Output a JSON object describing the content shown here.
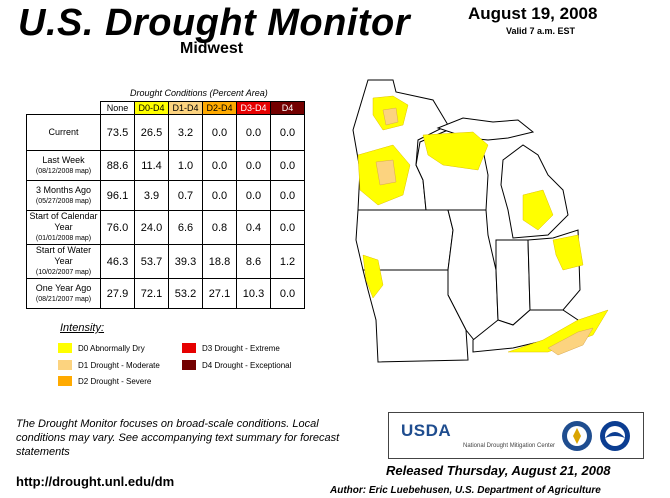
{
  "header": {
    "title": "U.S. Drought Monitor",
    "region": "Midwest",
    "date": "August 19, 2008",
    "valid": "Valid 7 a.m. EST"
  },
  "table": {
    "caption": "Drought Conditions (Percent Area)",
    "columns": [
      "None",
      "D0-D4",
      "D1-D4",
      "D2-D4",
      "D3-D4",
      "D4"
    ],
    "rows": [
      {
        "label": "Current",
        "sub": "",
        "values": [
          "73.5",
          "26.5",
          "3.2",
          "0.0",
          "0.0",
          "0.0"
        ]
      },
      {
        "label": "Last Week",
        "sub": "(08/12/2008 map)",
        "values": [
          "88.6",
          "11.4",
          "1.0",
          "0.0",
          "0.0",
          "0.0"
        ]
      },
      {
        "label": "3 Months Ago",
        "sub": "(05/27/2008 map)",
        "values": [
          "96.1",
          "3.9",
          "0.7",
          "0.0",
          "0.0",
          "0.0"
        ]
      },
      {
        "label": "Start of Calendar Year",
        "sub": "(01/01/2008 map)",
        "values": [
          "76.0",
          "24.0",
          "6.6",
          "0.8",
          "0.4",
          "0.0"
        ]
      },
      {
        "label": "Start of Water Year",
        "sub": "(10/02/2007 map)",
        "values": [
          "46.3",
          "53.7",
          "39.3",
          "18.8",
          "8.6",
          "1.2"
        ]
      },
      {
        "label": "One Year Ago",
        "sub": "(08/21/2007 map)",
        "values": [
          "27.9",
          "72.1",
          "53.2",
          "27.1",
          "10.3",
          "0.0"
        ]
      }
    ]
  },
  "legend": {
    "title": "Intensity:",
    "items": [
      {
        "label": "D0 Abnormally Dry",
        "color": "#ffff00"
      },
      {
        "label": "D1 Drought - Moderate",
        "color": "#fcd37f"
      },
      {
        "label": "D2 Drought - Severe",
        "color": "#ffaa00"
      },
      {
        "label": "D3 Drought - Extreme",
        "color": "#e60000"
      },
      {
        "label": "D4 Drought - Exceptional",
        "color": "#730000"
      }
    ]
  },
  "footer": {
    "note": "The Drought Monitor focuses on broad-scale conditions. Local conditions may vary. See accompanying text summary for forecast statements",
    "url": "http://drought.unl.edu/dm",
    "released": "Released Thursday, August 21, 2008",
    "author": "Author: Eric Luebehusen, U.S. Department of Agriculture"
  },
  "logos": {
    "usda": "USDA",
    "ndmc": "National Drought Mitigation Center"
  }
}
